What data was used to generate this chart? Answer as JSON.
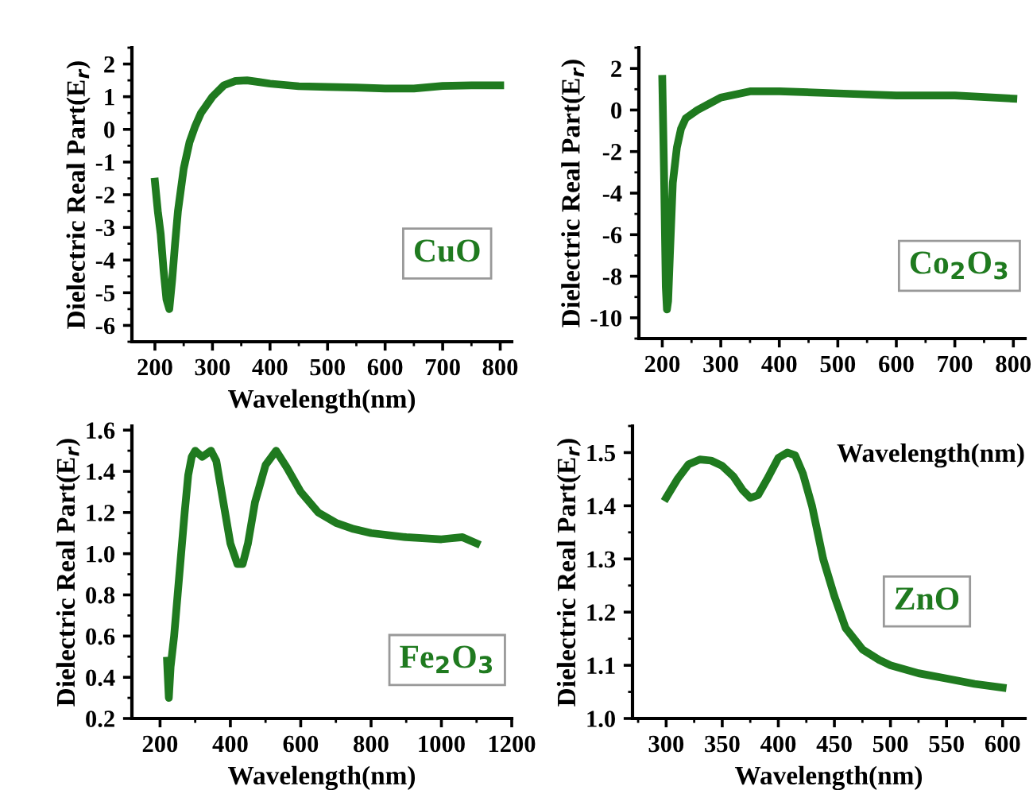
{
  "chart_data": [
    {
      "type": "line",
      "xlabel": "Wavelength(nm)",
      "ylabel": "Dielectric Real Part(E$_{r}$)",
      "annotations": [
        "CuO"
      ],
      "xlim": [
        160,
        820
      ],
      "ylim": [
        -6.5,
        2.5
      ],
      "xticks": [
        200,
        300,
        400,
        500,
        600,
        700,
        800
      ],
      "yticks": [
        -6,
        -5,
        -4,
        -3,
        -2,
        -1,
        0,
        1,
        2
      ],
      "grid": false,
      "legend": false,
      "series": [
        {
          "color": "#1f7a1f",
          "x": [
            200,
            205,
            210,
            215,
            220,
            225,
            230,
            235,
            240,
            250,
            260,
            270,
            280,
            300,
            320,
            340,
            360,
            380,
            400,
            450,
            500,
            550,
            600,
            650,
            700,
            750,
            800
          ],
          "values": [
            -1.6,
            -2.5,
            -3.2,
            -4.3,
            -5.2,
            -5.5,
            -4.6,
            -3.5,
            -2.5,
            -1.2,
            -0.4,
            0.1,
            0.5,
            1.0,
            1.35,
            1.48,
            1.5,
            1.45,
            1.4,
            1.32,
            1.3,
            1.28,
            1.25,
            1.25,
            1.33,
            1.35,
            1.35
          ]
        }
      ]
    },
    {
      "type": "line",
      "xlabel": "Wavelength(nm)",
      "ylabel": "Dielectric Real Part(E$_{r}$)",
      "annotations": [
        "Co$_{2}$O$_{3}$"
      ],
      "xlim": [
        160,
        820
      ],
      "ylim": [
        -11,
        3
      ],
      "xticks": [
        200,
        300,
        400,
        500,
        600,
        700,
        800
      ],
      "yticks": [
        -10,
        -8,
        -6,
        -4,
        -2,
        0,
        2
      ],
      "grid": false,
      "legend": false,
      "series": [
        {
          "color": "#1f7a1f",
          "x": [
            200,
            203,
            206,
            208,
            210,
            213,
            218,
            225,
            232,
            240,
            260,
            280,
            300,
            350,
            400,
            500,
            600,
            700,
            800
          ],
          "values": [
            1.5,
            -3,
            -8.5,
            -9.6,
            -9.2,
            -7,
            -3.5,
            -1.8,
            -0.9,
            -0.4,
            0,
            0.3,
            0.6,
            0.9,
            0.9,
            0.8,
            0.7,
            0.7,
            0.55
          ]
        }
      ]
    },
    {
      "type": "line",
      "xlabel": "Wavelength(nm)",
      "ylabel": "Dielectric Real Part(E$_{r}$)",
      "annotations": [
        "Fe$_{2}$O$_{3}$"
      ],
      "xlim": [
        120,
        1200
      ],
      "ylim": [
        0.2,
        1.62
      ],
      "xticks": [
        200,
        400,
        600,
        800,
        1000,
        1200
      ],
      "yticks": [
        {
          "value": 0.2,
          "label": "0.2"
        },
        {
          "value": 0.4,
          "label": "0.4"
        },
        {
          "value": 0.6,
          "label": "0.6"
        },
        {
          "value": 0.8,
          "label": "0.8"
        },
        {
          "value": 1.0,
          "label": "1.0"
        },
        {
          "value": 1.2,
          "label": "1.2"
        },
        {
          "value": 1.4,
          "label": "1.4"
        },
        {
          "value": 1.6,
          "label": "1.6"
        }
      ],
      "grid": false,
      "legend": false,
      "series": [
        {
          "color": "#1f7a1f",
          "x": [
            220,
            225,
            230,
            240,
            250,
            260,
            270,
            280,
            290,
            300,
            320,
            345,
            360,
            380,
            400,
            420,
            435,
            450,
            470,
            500,
            530,
            560,
            600,
            650,
            700,
            750,
            800,
            900,
            1000,
            1060,
            1100
          ],
          "values": [
            0.48,
            0.3,
            0.45,
            0.6,
            0.8,
            1.0,
            1.2,
            1.38,
            1.47,
            1.5,
            1.47,
            1.5,
            1.45,
            1.25,
            1.05,
            0.95,
            0.95,
            1.05,
            1.25,
            1.43,
            1.5,
            1.42,
            1.3,
            1.2,
            1.15,
            1.12,
            1.1,
            1.08,
            1.07,
            1.08,
            1.05
          ]
        }
      ]
    },
    {
      "type": "line",
      "xlabel": "Wavelength(nm)",
      "ylabel": "Dielectric Real Part(E$_{r}$)",
      "annotations": [
        "ZnO"
      ],
      "xlim": [
        270,
        620
      ],
      "ylim": [
        1.0,
        1.55
      ],
      "xticks": [
        300,
        350,
        400,
        450,
        500,
        550,
        600
      ],
      "yticks": [
        {
          "value": 1.0,
          "label": "1.0"
        },
        {
          "value": 1.1,
          "label": "1.1"
        },
        {
          "value": 1.2,
          "label": "1.2"
        },
        {
          "value": 1.3,
          "label": "1.3"
        },
        {
          "value": 1.4,
          "label": "1.4"
        },
        {
          "value": 1.5,
          "label": "1.5"
        }
      ],
      "grid": false,
      "legend": false,
      "series": [
        {
          "color": "#1f7a1f",
          "x": [
            300,
            310,
            320,
            330,
            340,
            350,
            360,
            368,
            375,
            382,
            390,
            400,
            408,
            415,
            422,
            430,
            440,
            450,
            460,
            475,
            490,
            500,
            525,
            550,
            575,
            600
          ],
          "values": [
            1.415,
            1.45,
            1.478,
            1.487,
            1.485,
            1.475,
            1.455,
            1.43,
            1.415,
            1.42,
            1.45,
            1.49,
            1.5,
            1.495,
            1.46,
            1.4,
            1.3,
            1.23,
            1.17,
            1.13,
            1.11,
            1.1,
            1.085,
            1.075,
            1.065,
            1.058
          ]
        }
      ]
    }
  ]
}
